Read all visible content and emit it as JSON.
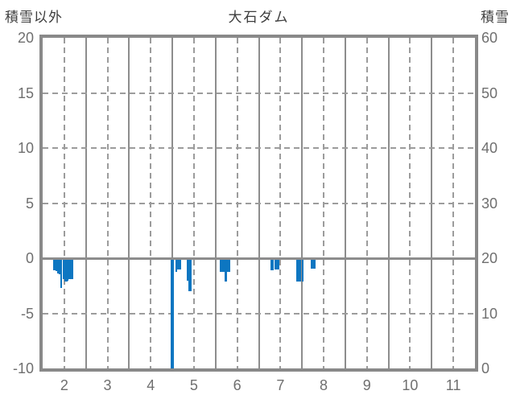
{
  "header": {
    "left_axis_title": "積雪以外",
    "title": "大石ダム",
    "right_axis_title": "積雪"
  },
  "colors": {
    "bar": "#0d76c1",
    "frame": "#898989",
    "grid": "#9c9c9c",
    "tick_text": "#6f6f6f",
    "title_text": "#3d3d3d"
  },
  "chart_data": {
    "type": "bar",
    "title": "大石ダム",
    "left_axis": {
      "label": "積雪以外",
      "ticks": [
        20,
        15,
        10,
        5,
        0,
        -5,
        -10
      ],
      "range": [
        -10,
        20
      ]
    },
    "right_axis": {
      "label": "積雪",
      "ticks": [
        60,
        50,
        40,
        30,
        20,
        10,
        0
      ],
      "range": [
        0,
        60
      ]
    },
    "x_axis": {
      "tick_labels": [
        "2",
        "3",
        "4",
        "5",
        "6",
        "7",
        "8",
        "9",
        "10",
        "11"
      ],
      "months": [
        2,
        3,
        4,
        5,
        6,
        7,
        8,
        9,
        10,
        11
      ],
      "range_months": [
        2,
        12
      ],
      "grid": "solid lines at month boundaries, dashed lines at month centers"
    },
    "legend": "none",
    "series": [
      {
        "name": "積雪以外",
        "axis": "left",
        "bar_width_days": 1,
        "points": [
          {
            "month": 2,
            "day": 8,
            "value": -1.0
          },
          {
            "month": 2,
            "day": 9,
            "value": -1.0
          },
          {
            "month": 2,
            "day": 10,
            "value": -1.05
          },
          {
            "month": 2,
            "day": 11,
            "value": -1.3
          },
          {
            "month": 2,
            "day": 12,
            "value": -1.35
          },
          {
            "month": 2,
            "day": 13,
            "value": -2.6
          },
          {
            "month": 2,
            "day": 15,
            "value": -1.8
          },
          {
            "month": 2,
            "day": 16,
            "value": -2.0
          },
          {
            "month": 2,
            "day": 17,
            "value": -2.0
          },
          {
            "month": 2,
            "day": 18,
            "value": -1.9
          },
          {
            "month": 2,
            "day": 19,
            "value": -1.8
          },
          {
            "month": 2,
            "day": 20,
            "value": -1.8
          },
          {
            "month": 2,
            "day": 21,
            "value": -1.8
          },
          {
            "month": 4,
            "day": 30,
            "value": -10.4
          },
          {
            "month": 5,
            "day": 1,
            "value": -10.4
          },
          {
            "month": 5,
            "day": 3,
            "value": -1.1
          },
          {
            "month": 5,
            "day": 4,
            "value": -0.9
          },
          {
            "month": 5,
            "day": 5,
            "value": -0.9
          },
          {
            "month": 5,
            "day": 6,
            "value": -0.9
          },
          {
            "month": 5,
            "day": 11,
            "value": -1.9
          },
          {
            "month": 5,
            "day": 12,
            "value": -2.9
          },
          {
            "month": 5,
            "day": 13,
            "value": -2.9
          },
          {
            "month": 6,
            "day": 4,
            "value": -1.1
          },
          {
            "month": 6,
            "day": 5,
            "value": -1.1
          },
          {
            "month": 6,
            "day": 6,
            "value": -1.1
          },
          {
            "month": 6,
            "day": 7,
            "value": -2.0
          },
          {
            "month": 6,
            "day": 8,
            "value": -2.0
          },
          {
            "month": 6,
            "day": 9,
            "value": -1.1
          },
          {
            "month": 6,
            "day": 10,
            "value": -1.1
          },
          {
            "month": 7,
            "day": 9,
            "value": -0.95
          },
          {
            "month": 7,
            "day": 10,
            "value": -0.95
          },
          {
            "month": 7,
            "day": 12,
            "value": -0.9
          },
          {
            "month": 7,
            "day": 13,
            "value": -0.9
          },
          {
            "month": 7,
            "day": 14,
            "value": -0.9
          },
          {
            "month": 7,
            "day": 27,
            "value": -2.0
          },
          {
            "month": 7,
            "day": 28,
            "value": -2.0
          },
          {
            "month": 7,
            "day": 29,
            "value": -2.0
          },
          {
            "month": 8,
            "day": 1,
            "value": -2.0
          },
          {
            "month": 8,
            "day": 7,
            "value": -0.85
          },
          {
            "month": 8,
            "day": 8,
            "value": -0.85
          },
          {
            "month": 8,
            "day": 9,
            "value": -0.85
          }
        ]
      }
    ]
  }
}
